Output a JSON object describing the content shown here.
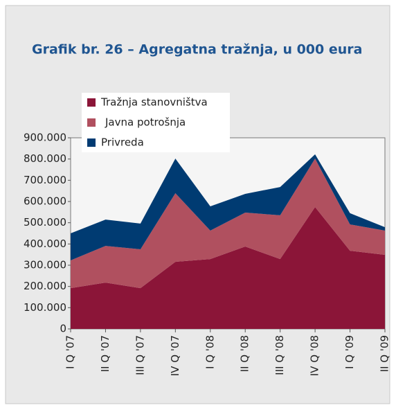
{
  "chart_data": {
    "type": "stacked_area",
    "title": "Grafik br. 26 – Agregatna tražnja, u 000 eura",
    "categories": [
      "I Q '07",
      "II Q '07",
      "III Q '07",
      "IV Q '07",
      "I Q '08",
      "II Q '08",
      "III Q '08",
      "IV Q '08",
      "I Q '09",
      "II Q '09"
    ],
    "series": [
      {
        "name": "Tražnja stanovništva",
        "color": "#8b1538",
        "values": [
          192000,
          218000,
          192000,
          316000,
          329000,
          388000,
          329000,
          574000,
          368000,
          349000
        ]
      },
      {
        "name": "Javna potrošnja",
        "color": "#b0505f",
        "values": [
          131000,
          173000,
          183000,
          323000,
          134000,
          160000,
          206000,
          228000,
          124000,
          114000
        ]
      },
      {
        "name": "Privreda",
        "color": "#003b72",
        "values": [
          127000,
          124000,
          121000,
          163000,
          114000,
          88000,
          133000,
          20000,
          53000,
          16000
        ]
      }
    ],
    "ylim": [
      0,
      900000
    ],
    "yticks": [
      0,
      {
        "value": 100000,
        "label": "100.000"
      },
      {
        "value": 200000,
        "label": "200.000"
      },
      {
        "value": 300000,
        "label": "300.000"
      },
      {
        "value": 400000,
        "label": "400.000"
      },
      {
        "value": 500000,
        "label": "500.000"
      },
      {
        "value": 600000,
        "label": "600.000"
      },
      {
        "value": 700000,
        "label": "700.000"
      },
      {
        "value": 800000,
        "label": "800.000"
      },
      {
        "value": 900000,
        "label": "900.000"
      }
    ]
  }
}
